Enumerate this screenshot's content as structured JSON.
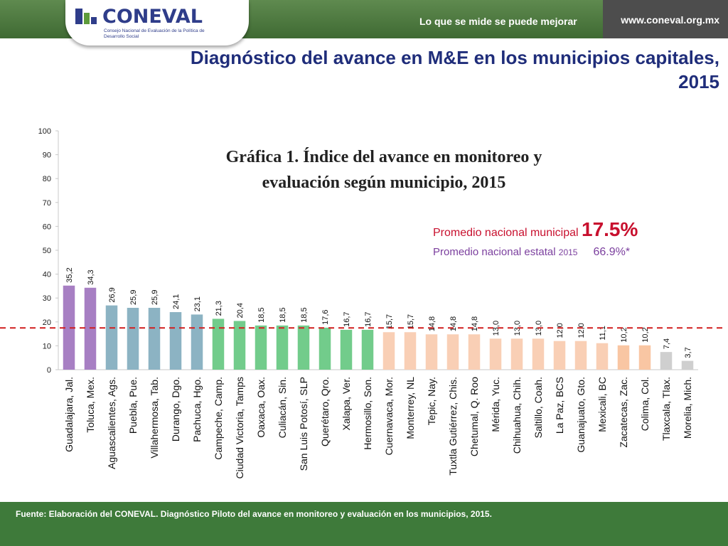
{
  "header": {
    "tagline": "Lo que se mide se puede mejorar",
    "site": "www.coneval.org.mx",
    "logo_word": "CONEVAL",
    "logo_sub": "Consejo Nacional de Evaluación de la Política de Desarrollo Social"
  },
  "slide_title": "Diagnóstico del avance en M&E en los municipios capitales, 2015",
  "footnote": "Fuente: Elaboración del CONEVAL. Diagnóstico Piloto del avance en monitoreo y evaluación en los municipios, 2015.",
  "chart_data": {
    "type": "bar",
    "title": "Gráfica 1. Índice del avance en monitoreo y evaluación según municipio, 2015",
    "categories": [
      "Guadalajara, Jal.",
      "Toluca, Mex.",
      "Aguascalientes, Ags.",
      "Puebla, Pue.",
      "Villahermosa, Tab.",
      "Durango, Dgo.",
      "Pachuca, Hgo.",
      "Campeche, Camp.",
      "Ciudad Victoria, Tamps",
      "Oaxaca, Oax.",
      "Culiacán, Sin.",
      "San Luis Potosí, SLP",
      "Querétaro, Qro.",
      "Xalapa, Ver.",
      "Hermosillo, Son.",
      "Cuernavaca, Mor.",
      "Monterrey, NL",
      "Tepic, Nay.",
      "Tuxtla Gutiérrez, Chis.",
      "Chetumal, Q. Roo",
      "Mérida, Yuc.",
      "Chihuahua, Chih.",
      "Saltillo, Coah.",
      "La Paz, BCS",
      "Guanajuato, Gto.",
      "Mexicali, BC",
      "Zacatecas, Zac.",
      "Colima, Col.",
      "Tlaxcala, Tlax.",
      "Morelia, Mich."
    ],
    "values": [
      35.2,
      34.3,
      26.9,
      25.9,
      25.9,
      24.1,
      23.1,
      21.3,
      20.4,
      18.5,
      18.5,
      18.5,
      17.6,
      16.7,
      16.7,
      15.7,
      15.7,
      14.8,
      14.8,
      14.8,
      13.0,
      13.0,
      13.0,
      12.0,
      12.0,
      11.1,
      10.2,
      10.2,
      7.4,
      3.7
    ],
    "data_labels": [
      "35,2",
      "34,3",
      "26,9",
      "25,9",
      "25,9",
      "24,1",
      "23,1",
      "21,3",
      "20,4",
      "18,5",
      "18,5",
      "18,5",
      "17,6",
      "16,7",
      "16,7",
      "15,7",
      "15,7",
      "14,8",
      "14,8",
      "14,8",
      "13,0",
      "13,0",
      "13,0",
      "12,0",
      "12,0",
      "11,1",
      "10,2",
      "10,2",
      "7,4",
      "3,7"
    ],
    "colors": [
      "#a77fc3",
      "#a77fc3",
      "#8cb3c3",
      "#8cb3c3",
      "#8cb3c3",
      "#8cb3c3",
      "#8cb3c3",
      "#72cc8b",
      "#72cc8b",
      "#72cc8b",
      "#72cc8b",
      "#72cc8b",
      "#72cc8b",
      "#72cc8b",
      "#72cc8b",
      "#f9cfb5",
      "#f9cfb5",
      "#f9cfb5",
      "#f9cfb5",
      "#f9cfb5",
      "#f9cfb5",
      "#f9cfb5",
      "#f9cfb5",
      "#f9cfb5",
      "#f9cfb5",
      "#f9cfb5",
      "#f9c6a3",
      "#f9c6a3",
      "#cfcfcf",
      "#cfcfcf"
    ],
    "ylim": [
      0,
      100
    ],
    "yticks": [
      0,
      10,
      20,
      30,
      40,
      50,
      60,
      70,
      80,
      90,
      100
    ],
    "grid": false,
    "reference_line": {
      "value": 17.5,
      "color": "#d11f1f",
      "style": "dashed"
    },
    "annotations": [
      {
        "label": "Promedio nacional municipal",
        "value": "17.5%",
        "color": "#c8102e"
      },
      {
        "label": "Promedio nacional estatal",
        "year": "2015",
        "value": "66.9%*",
        "color": "#7b3f9e"
      }
    ]
  }
}
